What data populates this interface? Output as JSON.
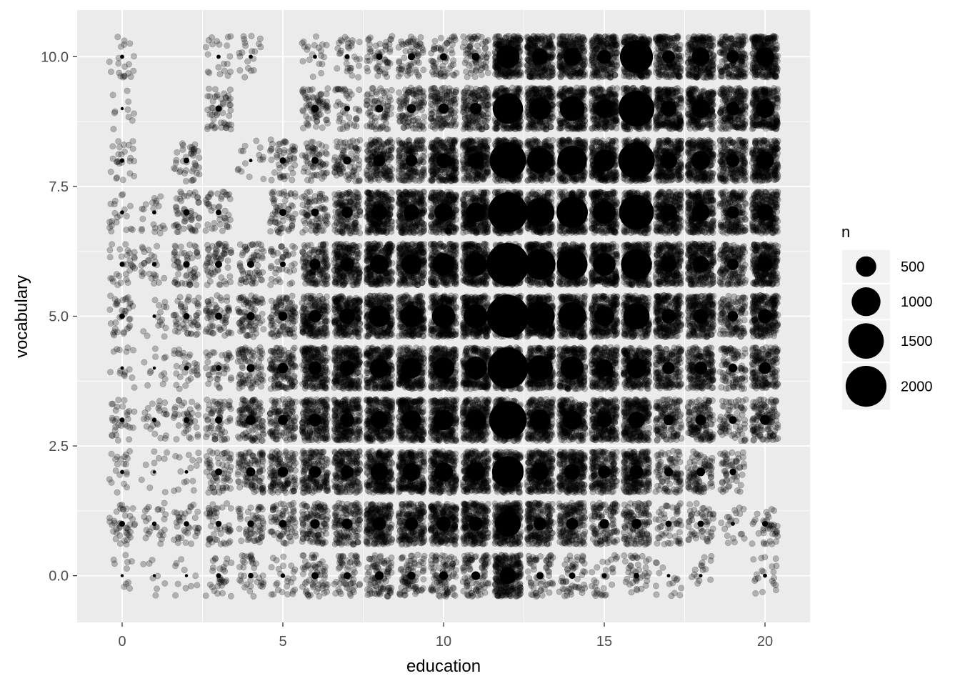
{
  "chart_data": {
    "type": "scatter",
    "subtype": "jittered-points-with-count-circles",
    "xlabel": "education",
    "ylabel": "vocabulary",
    "xlim": [
      -1.4,
      21.4
    ],
    "ylim": [
      -0.9,
      10.9
    ],
    "x_ticks": [
      0,
      5,
      10,
      15,
      20
    ],
    "x_tick_labels": [
      "0",
      "5",
      "10",
      "15",
      "20"
    ],
    "y_ticks": [
      0,
      2.5,
      5,
      7.5,
      10
    ],
    "y_tick_labels": [
      "0.0",
      "2.5",
      "5.0",
      "7.5",
      "10.0"
    ],
    "x_minor_ticks": [
      2.5,
      7.5,
      12.5,
      17.5
    ],
    "y_minor_ticks": [
      1.25,
      3.75,
      6.25,
      8.75
    ],
    "grid": true,
    "panel_color": "#ebebeb",
    "grid_color": "#ffffff",
    "point_color": "#000000",
    "jitter_alpha": 0.25,
    "jitter_width": 0.4,
    "jitter_height": 0.4,
    "legend": {
      "title": "n",
      "position": "right",
      "entries": [
        {
          "label": "500",
          "value": 500
        },
        {
          "label": "1000",
          "value": 1000
        },
        {
          "label": "1500",
          "value": 1500
        },
        {
          "label": "2000",
          "value": 2000
        }
      ]
    },
    "count_max": 2200,
    "columns": [
      {
        "education": 0,
        "counts": [
          10,
          40,
          20,
          30,
          15,
          35,
          30,
          20,
          25,
          10,
          20
        ]
      },
      {
        "education": 1,
        "counts": [
          8,
          25,
          10,
          25,
          12,
          15,
          25,
          20,
          0,
          0,
          0
        ]
      },
      {
        "education": 2,
        "counts": [
          10,
          35,
          15,
          40,
          30,
          50,
          55,
          50,
          40,
          0,
          0
        ]
      },
      {
        "education": 3,
        "counts": [
          30,
          45,
          60,
          60,
          40,
          60,
          60,
          40,
          0,
          50,
          20
        ]
      },
      {
        "education": 4,
        "counts": [
          35,
          55,
          100,
          120,
          80,
          80,
          60,
          0,
          15,
          0,
          20
        ]
      },
      {
        "education": 5,
        "counts": [
          25,
          70,
          130,
          120,
          130,
          100,
          40,
          60,
          50,
          0,
          0
        ]
      },
      {
        "education": 6,
        "counts": [
          60,
          110,
          170,
          200,
          210,
          190,
          150,
          75,
          60,
          70,
          20
        ]
      },
      {
        "education": 7,
        "counts": [
          60,
          130,
          200,
          240,
          280,
          300,
          230,
          150,
          80,
          40,
          30
        ]
      },
      {
        "education": 8,
        "counts": [
          90,
          220,
          370,
          380,
          460,
          560,
          430,
          320,
          170,
          70,
          50
        ]
      },
      {
        "education": 9,
        "counts": [
          80,
          200,
          380,
          460,
          510,
          600,
          500,
          300,
          170,
          100,
          60
        ]
      },
      {
        "education": 10,
        "counts": [
          90,
          250,
          410,
          510,
          560,
          640,
          590,
          400,
          260,
          130,
          60
        ]
      },
      {
        "education": 11,
        "counts": [
          90,
          240,
          420,
          520,
          620,
          710,
          630,
          460,
          320,
          160,
          70
        ]
      },
      {
        "education": 12,
        "counts": [
          330,
          800,
          1200,
          1700,
          2000,
          2150,
          2200,
          1900,
          1600,
          1100,
          650
        ]
      },
      {
        "education": 13,
        "counts": [
          60,
          200,
          360,
          520,
          780,
          1050,
          1150,
          1000,
          800,
          600,
          330
        ]
      },
      {
        "education": 14,
        "counts": [
          50,
          170,
          300,
          450,
          640,
          940,
          1130,
          1180,
          1050,
          730,
          380
        ]
      },
      {
        "education": 15,
        "counts": [
          30,
          110,
          190,
          280,
          360,
          480,
          620,
          640,
          580,
          430,
          230
        ]
      },
      {
        "education": 16,
        "counts": [
          40,
          120,
          230,
          330,
          500,
          830,
          1140,
          1450,
          1600,
          1550,
          1300
        ]
      },
      {
        "education": 17,
        "counts": [
          15,
          50,
          90,
          130,
          180,
          250,
          310,
          340,
          350,
          290,
          200
        ]
      },
      {
        "education": 18,
        "counts": [
          15,
          50,
          90,
          140,
          200,
          260,
          330,
          390,
          430,
          420,
          380
        ]
      },
      {
        "education": 19,
        "counts": [
          0,
          20,
          55,
          70,
          95,
          125,
          155,
          185,
          210,
          210,
          190
        ]
      },
      {
        "education": 20,
        "counts": [
          20,
          40,
          0,
          120,
          170,
          240,
          290,
          330,
          380,
          410,
          420
        ]
      }
    ]
  }
}
